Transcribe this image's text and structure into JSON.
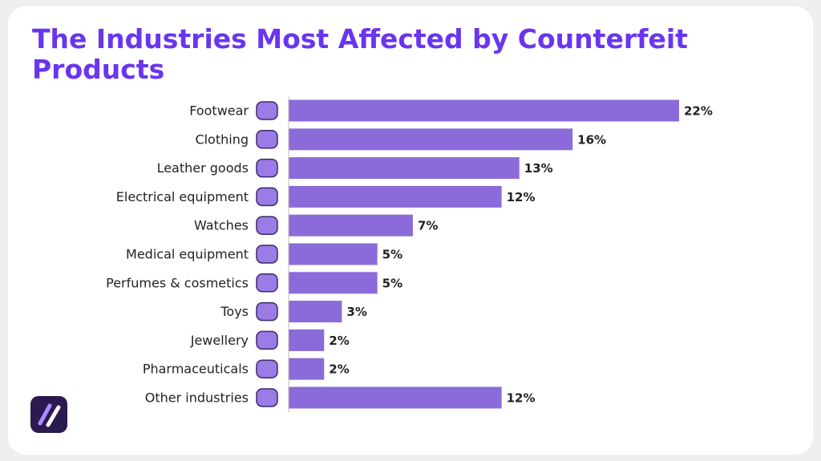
{
  "chart_data": {
    "type": "bar",
    "orientation": "horizontal",
    "title": "The Industries Most Affected by Counterfeit Products",
    "categories": [
      "Footwear",
      "Clothing",
      "Leather goods",
      "Electrical equipment",
      "Watches",
      "Medical equipment",
      "Perfumes & cosmetics",
      "Toys",
      "Jewellery",
      "Pharmaceuticals",
      "Other industries"
    ],
    "values": [
      22,
      16,
      13,
      12,
      7,
      5,
      5,
      3,
      2,
      2,
      12
    ],
    "value_labels": [
      "22%",
      "16%",
      "13%",
      "12%",
      "7%",
      "5%",
      "5%",
      "3%",
      "2%",
      "2%",
      "12%"
    ],
    "color": "#8b6bd9"
  }
}
